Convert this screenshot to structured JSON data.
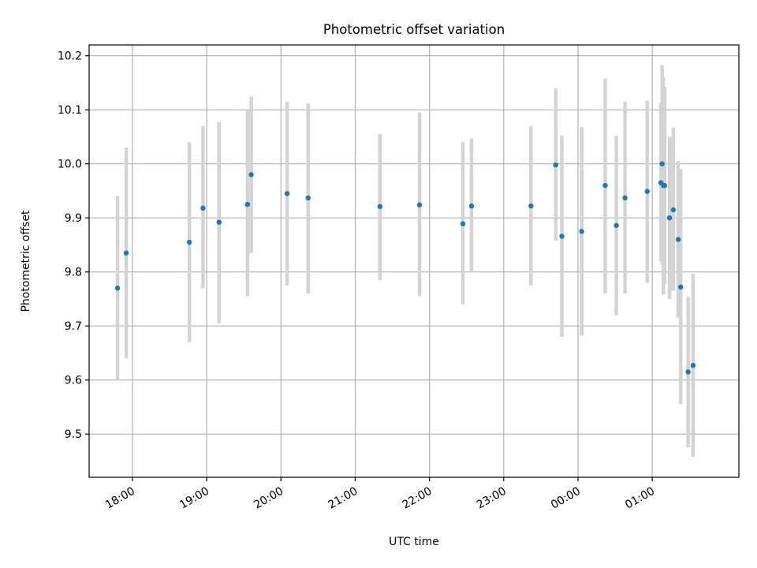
{
  "chart_data": {
    "type": "scatter",
    "title": "Photometric offset variation",
    "xlabel": "UTC time",
    "ylabel": "Photometric offset",
    "xlim": [
      "17:25",
      "02:10"
    ],
    "ylim": [
      9.42,
      10.22
    ],
    "x_ticks": [
      "18:00",
      "19:00",
      "20:00",
      "21:00",
      "22:00",
      "23:00",
      "00:00",
      "01:00"
    ],
    "y_ticks": [
      "9.5",
      "9.6",
      "9.7",
      "9.8",
      "9.9",
      "10.0",
      "10.1",
      "10.2"
    ],
    "grid": true,
    "marker_color": "#1f77b4",
    "errorbar_color": "#d3d3d3",
    "points": [
      {
        "t": "17:48",
        "y": 9.77,
        "ylo": 9.6,
        "yhi": 9.94
      },
      {
        "t": "17:55",
        "y": 9.835,
        "ylo": 9.64,
        "yhi": 10.03
      },
      {
        "t": "18:46",
        "y": 9.855,
        "ylo": 9.67,
        "yhi": 10.04
      },
      {
        "t": "18:57",
        "y": 9.918,
        "ylo": 9.77,
        "yhi": 10.07
      },
      {
        "t": "19:10",
        "y": 9.892,
        "ylo": 9.705,
        "yhi": 10.077
      },
      {
        "t": "19:33",
        "y": 9.925,
        "ylo": 9.755,
        "yhi": 10.1
      },
      {
        "t": "19:36",
        "y": 9.98,
        "ylo": 9.835,
        "yhi": 10.125
      },
      {
        "t": "20:05",
        "y": 9.945,
        "ylo": 9.775,
        "yhi": 10.115
      },
      {
        "t": "20:22",
        "y": 9.937,
        "ylo": 9.76,
        "yhi": 10.112
      },
      {
        "t": "21:20",
        "y": 9.921,
        "ylo": 9.785,
        "yhi": 10.055
      },
      {
        "t": "21:52",
        "y": 9.924,
        "ylo": 9.755,
        "yhi": 10.095
      },
      {
        "t": "22:27",
        "y": 9.889,
        "ylo": 9.74,
        "yhi": 10.04
      },
      {
        "t": "22:34",
        "y": 9.922,
        "ylo": 9.8,
        "yhi": 10.047
      },
      {
        "t": "23:22",
        "y": 9.922,
        "ylo": 9.775,
        "yhi": 10.07
      },
      {
        "t": "23:42",
        "y": 9.998,
        "ylo": 9.858,
        "yhi": 10.14
      },
      {
        "t": "23:47",
        "y": 9.866,
        "ylo": 9.68,
        "yhi": 10.052
      },
      {
        "t": "00:03",
        "y": 9.875,
        "ylo": 9.682,
        "yhi": 10.068
      },
      {
        "t": "00:22",
        "y": 9.96,
        "ylo": 9.76,
        "yhi": 10.158
      },
      {
        "t": "00:31",
        "y": 9.886,
        "ylo": 9.72,
        "yhi": 10.052
      },
      {
        "t": "00:38",
        "y": 9.937,
        "ylo": 9.76,
        "yhi": 10.115
      },
      {
        "t": "00:56",
        "y": 9.949,
        "ylo": 9.78,
        "yhi": 10.117
      },
      {
        "t": "01:07",
        "y": 9.965,
        "ylo": 9.82,
        "yhi": 10.112
      },
      {
        "t": "01:08",
        "y": 10.0,
        "ylo": 9.815,
        "yhi": 10.183
      },
      {
        "t": "01:09",
        "y": 9.96,
        "ylo": 9.758,
        "yhi": 10.16
      },
      {
        "t": "01:10",
        "y": 9.96,
        "ylo": 9.778,
        "yhi": 10.142
      },
      {
        "t": "01:14",
        "y": 9.9,
        "ylo": 9.75,
        "yhi": 10.05
      },
      {
        "t": "01:17",
        "y": 9.915,
        "ylo": 9.765,
        "yhi": 10.067
      },
      {
        "t": "01:21",
        "y": 9.86,
        "ylo": 9.715,
        "yhi": 10.005
      },
      {
        "t": "01:23",
        "y": 9.772,
        "ylo": 9.555,
        "yhi": 9.99
      },
      {
        "t": "01:29",
        "y": 9.615,
        "ylo": 9.475,
        "yhi": 9.755
      },
      {
        "t": "01:33",
        "y": 9.627,
        "ylo": 9.458,
        "yhi": 9.797
      }
    ]
  }
}
